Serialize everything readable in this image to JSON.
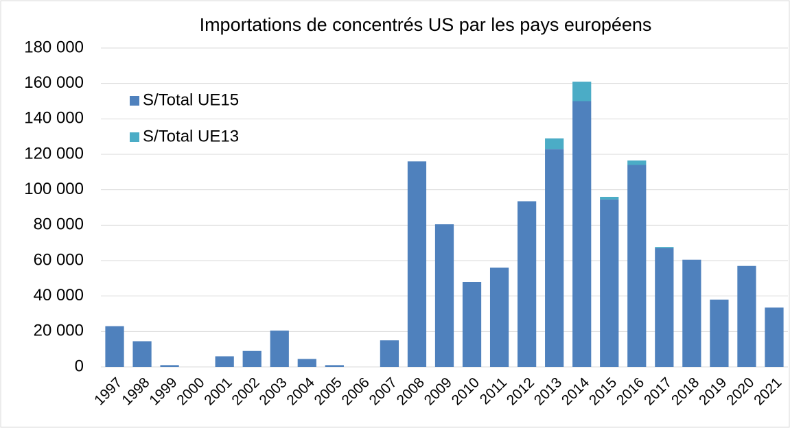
{
  "chart_data": {
    "type": "stacked_bar",
    "title": "Importations de concentrés US par les pays européens",
    "categories": [
      "1997",
      "1998",
      "1999",
      "2000",
      "2001",
      "2002",
      "2003",
      "2004",
      "2005",
      "2006",
      "2007",
      "2008",
      "2009",
      "2010",
      "2011",
      "2012",
      "2013",
      "2014",
      "2015",
      "2016",
      "2017",
      "2018",
      "2019",
      "2020",
      "2021"
    ],
    "series": [
      {
        "name": "S/Total UE15",
        "color": "#4f81bd",
        "values": [
          23000,
          14500,
          1000,
          0,
          6000,
          9000,
          20500,
          4500,
          1000,
          0,
          15000,
          116000,
          80500,
          48000,
          56000,
          93500,
          123000,
          150000,
          94500,
          114000,
          67000,
          60500,
          38000,
          57000,
          33500
        ]
      },
      {
        "name": "S/Total UE13",
        "color": "#4bacc6",
        "values": [
          0,
          0,
          0,
          0,
          0,
          0,
          0,
          0,
          0,
          0,
          0,
          0,
          0,
          0,
          0,
          0,
          6000,
          11000,
          1500,
          2500,
          700,
          0,
          0,
          0,
          0
        ]
      }
    ],
    "ylim": [
      0,
      180000
    ],
    "yticks": [
      {
        "value": 0,
        "label": "0"
      },
      {
        "value": 20000,
        "label": "20 000"
      },
      {
        "value": 40000,
        "label": "40 000"
      },
      {
        "value": 60000,
        "label": "60 000"
      },
      {
        "value": 80000,
        "label": "80 000"
      },
      {
        "value": 100000,
        "label": "100 000"
      },
      {
        "value": 120000,
        "label": "120 000"
      },
      {
        "value": 140000,
        "label": "140 000"
      },
      {
        "value": 160000,
        "label": "160 000"
      },
      {
        "value": 180000,
        "label": "180 000"
      }
    ],
    "grid": true,
    "legend": "upper-left"
  }
}
